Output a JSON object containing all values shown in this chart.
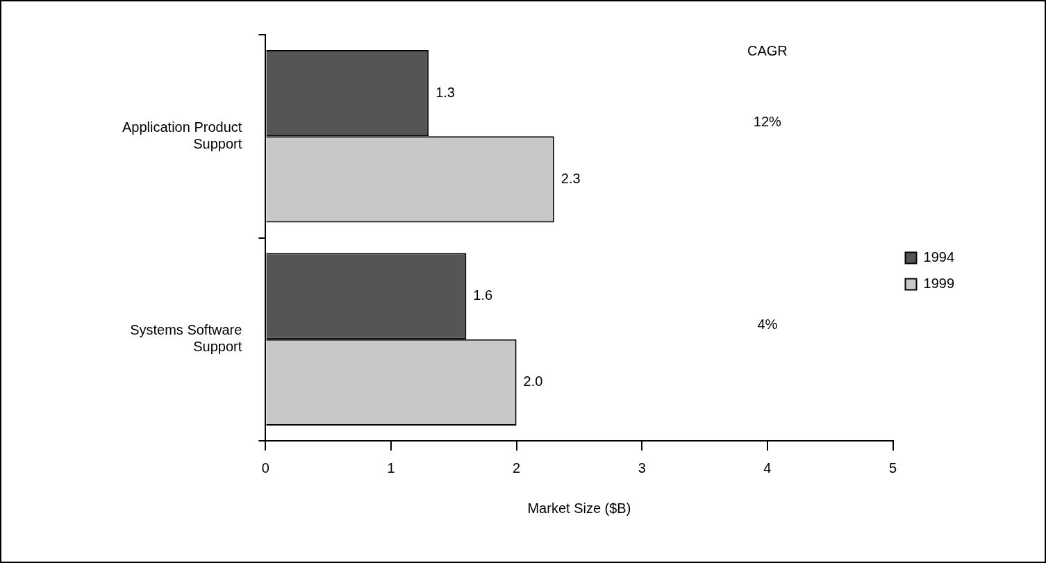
{
  "chart_data": {
    "type": "bar",
    "orientation": "horizontal",
    "xlabel": "Market Size ($B)",
    "categories": [
      "Application Product Support",
      "Systems Software Support"
    ],
    "series": [
      {
        "name": "1994",
        "color": "#555555",
        "values": [
          1.3,
          1.6
        ],
        "value_labels": [
          "1.3",
          "1.6"
        ]
      },
      {
        "name": "1999",
        "color": "#c8c8c8",
        "values": [
          2.3,
          2.0
        ],
        "value_labels": [
          "2.3",
          "2.0"
        ]
      }
    ],
    "xlim": [
      0,
      5
    ],
    "xticks": [
      0,
      1,
      2,
      3,
      4,
      5
    ],
    "grid": false,
    "legend": "right",
    "annotations": [
      "CAGR",
      "12%",
      "4%"
    ]
  }
}
